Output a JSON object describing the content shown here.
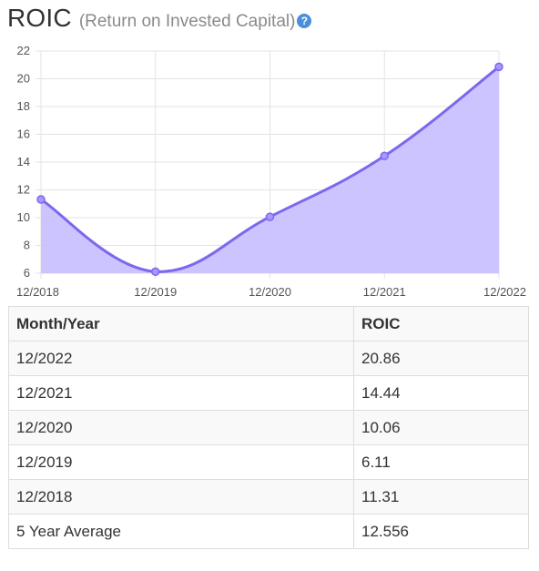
{
  "header": {
    "title": "ROIC",
    "subtitle": "(Return on Invested Capital)",
    "help_icon": "question-circle-icon"
  },
  "chart_data": {
    "type": "area",
    "categories": [
      "12/2018",
      "12/2019",
      "12/2020",
      "12/2021",
      "12/2022"
    ],
    "values": [
      11.31,
      6.11,
      10.06,
      14.44,
      20.86
    ],
    "ylim": [
      6,
      22
    ],
    "yticks": [
      6,
      8,
      10,
      12,
      14,
      16,
      18,
      20,
      22
    ],
    "grid": true,
    "line_color": "#7b68ee",
    "fill_color": "#c9c1ff"
  },
  "table": {
    "headers": [
      "Month/Year",
      "ROIC"
    ],
    "rows": [
      [
        "12/2022",
        "20.86"
      ],
      [
        "12/2021",
        "14.44"
      ],
      [
        "12/2020",
        "10.06"
      ],
      [
        "12/2019",
        "6.11"
      ],
      [
        "12/2018",
        "11.31"
      ],
      [
        "5 Year Average",
        "12.556"
      ]
    ]
  }
}
